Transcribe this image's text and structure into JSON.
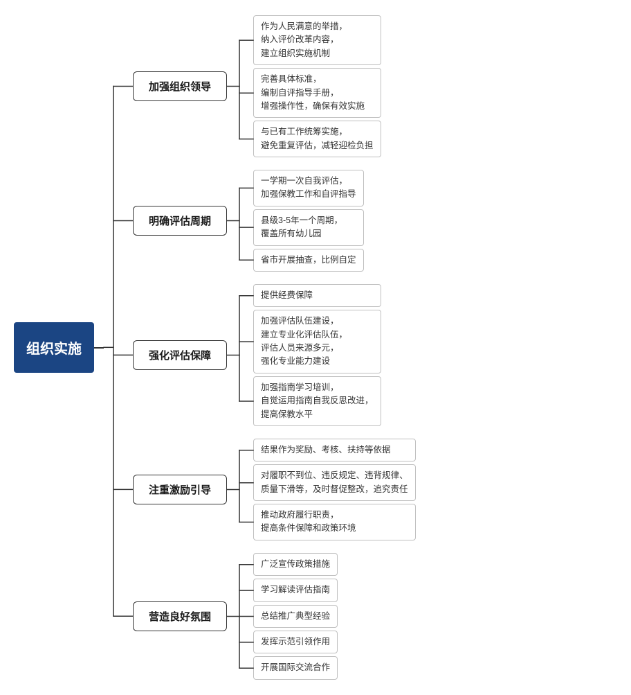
{
  "type": "mindmap",
  "background_color": "#ffffff",
  "root": {
    "label": "组织实施",
    "bg_color": "#1b4583",
    "text_color": "#ffffff",
    "font_size": 20,
    "font_weight": "bold"
  },
  "branch_style": {
    "bg_color": "#ffffff",
    "border_color": "#333333",
    "text_color": "#1a1a1a",
    "font_size": 15,
    "font_weight": "bold",
    "border_radius": 6
  },
  "leaf_style": {
    "bg_color": "#ffffff",
    "border_color": "#bfbfbf",
    "text_color": "#333333",
    "font_size": 12.5,
    "border_radius": 4
  },
  "connector_color": "#333333",
  "connector_width": 1.5,
  "branches": [
    {
      "label": "加强组织领导",
      "leaves": [
        "作为人民满意的举措，\n纳入评价改革内容，\n建立组织实施机制",
        "完善具体标准，\n编制自评指导手册，\n增强操作性，确保有效实施",
        "与已有工作统筹实施，\n避免重复评估，减轻迎检负担"
      ]
    },
    {
      "label": "明确评估周期",
      "leaves": [
        "一学期一次自我评估，\n加强保教工作和自评指导",
        "县级3-5年一个周期，\n覆盖所有幼儿园",
        "省市开展抽查，比例自定"
      ]
    },
    {
      "label": "强化评估保障",
      "leaves": [
        "提供经费保障",
        "加强评估队伍建设，\n建立专业化评估队伍，\n评估人员来源多元，\n强化专业能力建设",
        "加强指南学习培训，\n自觉运用指南自我反思改进，\n提高保教水平"
      ]
    },
    {
      "label": "注重激励引导",
      "leaves": [
        "结果作为奖励、考核、扶持等依据",
        "对履职不到位、违反规定、违背规律、\n质量下滑等，及时督促整改，追究责任",
        "推动政府履行职责，\n提高条件保障和政策环境"
      ]
    },
    {
      "label": "营造良好氛围",
      "leaves": [
        "广泛宣传政策措施",
        "学习解读评估指南",
        "总结推广典型经验",
        "发挥示范引领作用",
        "开展国际交流合作"
      ]
    }
  ]
}
